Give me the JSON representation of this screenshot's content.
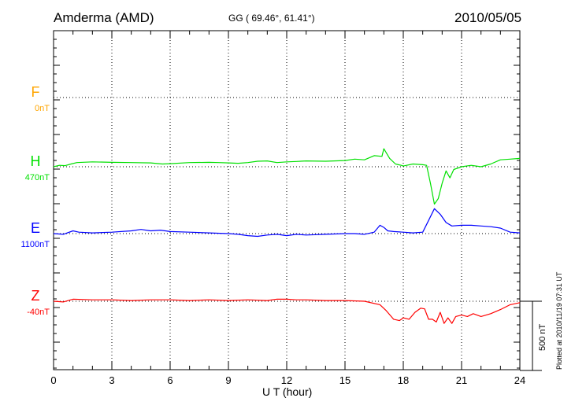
{
  "header": {
    "station": "Amderma (AMD)",
    "coords": "GG ( 69.46°,  61.41°)",
    "date": "2010/05/05"
  },
  "footer": {
    "plotted": "Plotted at 2010/11/19 07:31  UT"
  },
  "chart_data": {
    "type": "line",
    "title": "Amderma (AMD)",
    "xlabel": "U T (hour)",
    "xlim": [
      0,
      24
    ],
    "xticks": [
      0,
      3,
      6,
      9,
      12,
      15,
      18,
      21,
      24
    ],
    "scale_bar": {
      "value": 500,
      "label": "500 nT"
    },
    "grid": true,
    "series": [
      {
        "name": "F",
        "baseline_label": "0nT",
        "color": "#ffa500",
        "x": [],
        "y": []
      },
      {
        "name": "H",
        "baseline_label": "470nT",
        "color": "#00e000",
        "x": [
          0,
          0.3,
          0.6,
          0.9,
          1.2,
          2.0,
          3.0,
          4.0,
          5.0,
          5.6,
          6.0,
          7.0,
          8.0,
          8.5,
          9.0,
          9.5,
          10.0,
          10.5,
          11.0,
          11.5,
          12.0,
          12.5,
          13.0,
          14.0,
          15.0,
          15.5,
          16.0,
          16.5,
          16.9,
          17.0,
          17.3,
          17.6,
          17.9,
          18.0,
          18.5,
          19.0,
          19.2,
          19.4,
          19.6,
          19.8,
          20.0,
          20.2,
          20.4,
          20.6,
          21.0,
          21.5,
          22.0,
          22.5,
          23.0,
          23.5,
          24.0
        ],
        "y": [
          0,
          10,
          8,
          20,
          30,
          35,
          32,
          30,
          28,
          20,
          22,
          30,
          32,
          30,
          28,
          25,
          30,
          40,
          42,
          30,
          35,
          38,
          42,
          40,
          45,
          55,
          50,
          80,
          75,
          130,
          60,
          20,
          10,
          5,
          20,
          15,
          10,
          -120,
          -270,
          -230,
          -120,
          -30,
          -80,
          -20,
          0,
          10,
          0,
          20,
          50,
          55,
          60
        ]
      },
      {
        "name": "E",
        "baseline_label": "1100nT",
        "color": "#0000ff",
        "x": [
          0,
          0.5,
          1.0,
          1.3,
          2.0,
          3.0,
          4.0,
          4.5,
          5.0,
          5.5,
          6.0,
          7.0,
          8.0,
          9.0,
          9.5,
          10.0,
          10.5,
          11.0,
          11.5,
          12.0,
          12.5,
          13.0,
          14.0,
          15.0,
          15.5,
          16.0,
          16.5,
          16.8,
          17.0,
          17.2,
          17.5,
          18.0,
          18.5,
          19.0,
          19.3,
          19.6,
          19.9,
          20.2,
          20.5,
          21.0,
          21.5,
          22.0,
          22.5,
          23.0,
          23.5,
          24.0
        ],
        "y": [
          0,
          -5,
          20,
          10,
          5,
          10,
          20,
          30,
          20,
          25,
          15,
          10,
          5,
          0,
          -5,
          -15,
          -20,
          -10,
          -5,
          -15,
          -5,
          -10,
          -5,
          0,
          0,
          -5,
          10,
          60,
          45,
          20,
          15,
          10,
          5,
          10,
          95,
          180,
          140,
          80,
          55,
          60,
          60,
          55,
          50,
          40,
          10,
          5
        ]
      },
      {
        "name": "Z",
        "baseline_label": "-40nT",
        "color": "#ff0000",
        "x": [
          0,
          0.5,
          1.0,
          2.0,
          3.0,
          4.0,
          5.0,
          6.0,
          7.0,
          8.0,
          9.0,
          10.0,
          11.0,
          11.5,
          12.0,
          12.5,
          13.0,
          14.0,
          15.0,
          16.0,
          16.8,
          17.1,
          17.5,
          17.8,
          18.0,
          18.3,
          18.6,
          18.9,
          19.1,
          19.3,
          19.5,
          19.7,
          19.9,
          20.1,
          20.3,
          20.5,
          20.7,
          21.0,
          21.3,
          21.6,
          22.0,
          22.5,
          23.0,
          23.5,
          24.0
        ],
        "y": [
          0,
          -5,
          15,
          10,
          10,
          5,
          10,
          10,
          5,
          10,
          5,
          10,
          5,
          15,
          15,
          10,
          10,
          5,
          5,
          0,
          -25,
          -65,
          -130,
          -140,
          -120,
          -130,
          -80,
          -50,
          -55,
          -130,
          -130,
          -150,
          -80,
          -160,
          -120,
          -160,
          -110,
          -100,
          -110,
          -90,
          -110,
          -90,
          -60,
          -25,
          -10
        ]
      }
    ]
  }
}
